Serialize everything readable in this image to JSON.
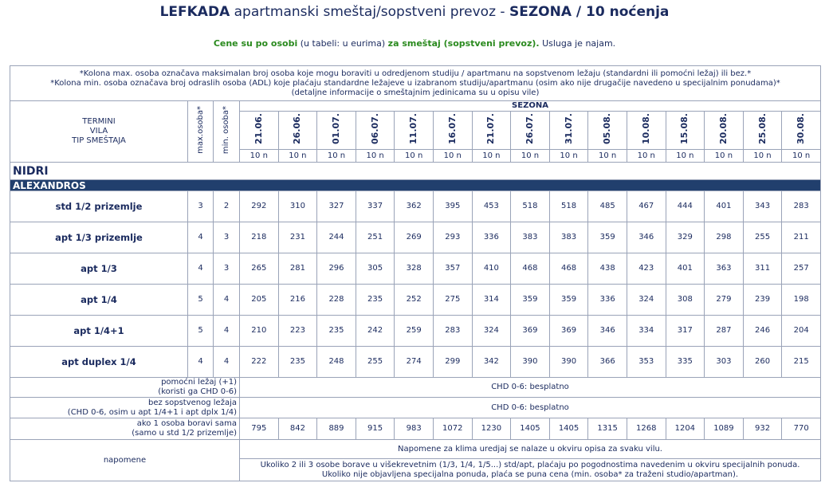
{
  "header": {
    "title": {
      "place": "LEFKADA",
      "desc": "apartmanski smeštaj/sopstveni prevoz -",
      "season": "SEZONA / 10 noćenja"
    },
    "subtitle": {
      "a": "Cene su po osobi",
      "b": "(u tabeli: u eurima)",
      "c": "za smeštaj (sopstveni prevoz).",
      "d": "Usluga je najam."
    }
  },
  "notes": [
    "*Kolona max. osoba označava maksimalan broj osoba koje mogu boraviti u odredjenom studiju / apartmanu na sopstvenom ležaju (standardni ili pomoćni ležaj) ili bez.*",
    "*Kolona min. osoba označava broj odraslih osoba (ADL) koje plaćaju standardne ležajeve u izabranom studiju/apartmanu (osim ako nije drugačije navedeno u specijalnim ponudama)*",
    "(detaljne informacije o smeštajnim jedinicama su u opisu vile)"
  ],
  "table": {
    "col_header": [
      "TERMINI",
      "VILA",
      "TIP SMEŠTAJA"
    ],
    "max_header": "max.osoba*",
    "min_header": "min. osoba*",
    "season": "SEZONA",
    "dates": [
      "21.06.",
      "26.06.",
      "01.07.",
      "06.07.",
      "11.07.",
      "16.07.",
      "21.07.",
      "26.07.",
      "31.07.",
      "05.08.",
      "10.08.",
      "15.08.",
      "20.08.",
      "25.08.",
      "30.08."
    ],
    "nights": [
      "10 n",
      "10 n",
      "10 n",
      "10 n",
      "10 n",
      "10 n",
      "10 n",
      "10 n",
      "10 n",
      "10 n",
      "10 n",
      "10 n",
      "10 n",
      "10 n",
      "10 n"
    ],
    "region": "NIDRI",
    "villa": "ALEXANDROS",
    "rows": [
      {
        "name": "std 1/2 prizemlje",
        "max": 3,
        "min": 2,
        "prices": [
          292,
          310,
          327,
          337,
          362,
          395,
          453,
          518,
          518,
          485,
          467,
          444,
          401,
          343,
          283
        ]
      },
      {
        "name": "apt 1/3 prizemlje",
        "max": 4,
        "min": 3,
        "prices": [
          218,
          231,
          244,
          251,
          269,
          293,
          336,
          383,
          383,
          359,
          346,
          329,
          298,
          255,
          211
        ]
      },
      {
        "name": "apt 1/3",
        "max": 4,
        "min": 3,
        "prices": [
          265,
          281,
          296,
          305,
          328,
          357,
          410,
          468,
          468,
          438,
          423,
          401,
          363,
          311,
          257
        ]
      },
      {
        "name": "apt 1/4",
        "max": 5,
        "min": 4,
        "prices": [
          205,
          216,
          228,
          235,
          252,
          275,
          314,
          359,
          359,
          336,
          324,
          308,
          279,
          239,
          198
        ]
      },
      {
        "name": "apt 1/4+1",
        "max": 5,
        "min": 4,
        "prices": [
          210,
          223,
          235,
          242,
          259,
          283,
          324,
          369,
          369,
          346,
          334,
          317,
          287,
          246,
          204
        ]
      },
      {
        "name": "apt duplex 1/4",
        "max": 4,
        "min": 4,
        "prices": [
          222,
          235,
          248,
          255,
          274,
          299,
          342,
          390,
          390,
          366,
          353,
          335,
          303,
          260,
          215
        ]
      }
    ],
    "extras": [
      {
        "label": [
          "pomoćni ležaj (+1)",
          "(koristi ga CHD 0-6)"
        ],
        "value": "CHD 0-6: besplatno"
      },
      {
        "label": [
          "bez sopstvenog ležaja",
          "(CHD 0-6, osim u apt 1/4+1 i apt dplx 1/4)"
        ],
        "value": "CHD 0-6: besplatno"
      }
    ],
    "single": {
      "label": [
        "ako 1 osoba boravi sama",
        "(samo u std 1/2 prizemlje)"
      ],
      "prices": [
        795,
        842,
        889,
        915,
        983,
        1072,
        1230,
        1405,
        1405,
        1315,
        1268,
        1204,
        1089,
        932,
        770
      ]
    },
    "remarks": {
      "label": "napomene",
      "lines": [
        [
          "Napomene za klima uredjaj se nalaze u okviru opisa za svaku vilu."
        ],
        [
          "Ukoliko 2 ili 3 osobe borave u višekrevetnim (1/3, 1/4, 1/5...) std/apt, plaćaju po pogodnostima navedenim u okviru specijalnih ponuda.",
          "Ukoliko nije objavljena specijalna ponuda, plaća se puna cena (min. osoba* za traženi studio/apartman)."
        ]
      ]
    }
  }
}
